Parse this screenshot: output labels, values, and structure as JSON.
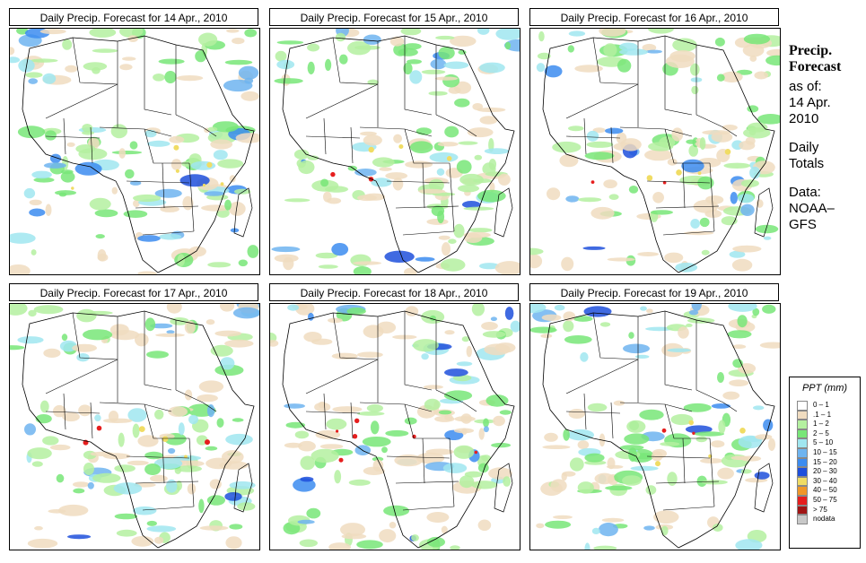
{
  "panels": [
    {
      "title": "Daily Precip. Forecast for  14 Apr., 2010"
    },
    {
      "title": "Daily Precip. Forecast for  15 Apr., 2010"
    },
    {
      "title": "Daily Precip. Forecast for  16 Apr., 2010"
    },
    {
      "title": "Daily Precip. Forecast for  17 Apr., 2010"
    },
    {
      "title": "Daily Precip. Forecast for  18 Apr., 2010"
    },
    {
      "title": "Daily Precip. Forecast for  19 Apr., 2010"
    }
  ],
  "sidebar": {
    "title_line1": "Precip.",
    "title_line2": "Forecast",
    "asof_line1": "as of:",
    "asof_line2": "14 Apr.",
    "asof_line3": "2010",
    "totals_line1": "Daily",
    "totals_line2": "Totals",
    "data_line1": "Data:",
    "data_line2": "NOAA–",
    "data_line3": "GFS"
  },
  "legend": {
    "title": "PPT (mm)",
    "items": [
      {
        "label": "0 – 1",
        "color": "#ffffff"
      },
      {
        "label": ".1 – 1",
        "color": "#f0dcc0"
      },
      {
        "label": "1 – 2",
        "color": "#b4f0a0"
      },
      {
        "label": "2 – 5",
        "color": "#78e678"
      },
      {
        "label": "5 – 10",
        "color": "#a0e6f0"
      },
      {
        "label": "10 – 15",
        "color": "#6eb4f0"
      },
      {
        "label": "15 – 20",
        "color": "#3c8cf0"
      },
      {
        "label": "20 – 30",
        "color": "#1e50dc"
      },
      {
        "label": "30 – 40",
        "color": "#f0dc64"
      },
      {
        "label": "40 – 50",
        "color": "#f09628"
      },
      {
        "label": "50 – 75",
        "color": "#e61e1e"
      },
      {
        "label": "> 75",
        "color": "#a01414"
      },
      {
        "label": "nodata",
        "color": "#c8c8c8"
      }
    ]
  }
}
